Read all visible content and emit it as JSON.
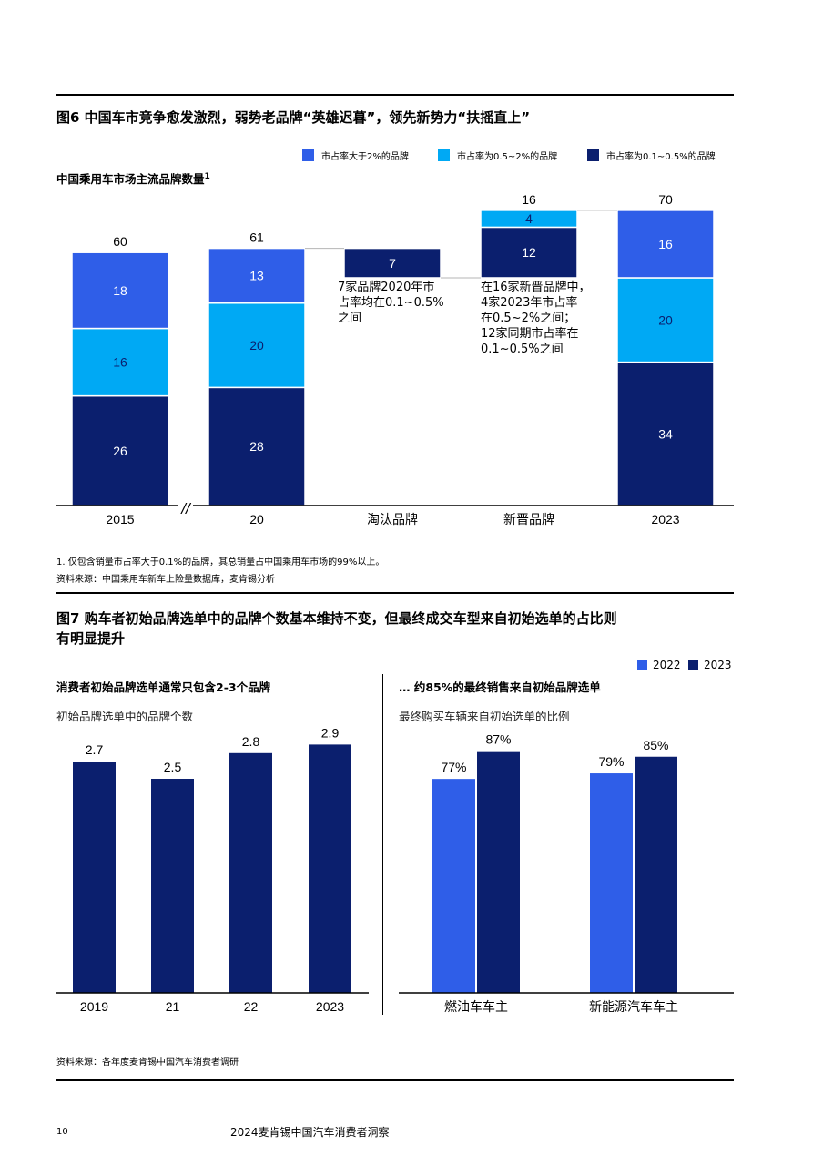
{
  "figure6": {
    "title": "图6 中国车市竞争愈发激烈，弱势老品牌“英雄迟暮”，领先新势力“扶摇直上”",
    "subtitle": "中国乘用车市场主流品牌数量",
    "subtitle_sup": "1",
    "legend": [
      {
        "label": "市占率大于2%的品牌",
        "color": "#2f5ee8"
      },
      {
        "label": "市占率为0.5~2%的品牌",
        "color": "#00a9f4"
      },
      {
        "label": "市占率为0.1~0.5%的品牌",
        "color": "#0b1f6e"
      }
    ],
    "annotation_left": [
      "7家品牌2020年市",
      "占率均在0.1~0.5%",
      "之间"
    ],
    "annotation_right": [
      "在16家新晋品牌中，",
      "4家2023年市占率",
      "在0.5~2%之间；",
      "12家同期市占率在",
      "0.1~0.5%之间"
    ],
    "footnote": "1.  仅包含销量市占率大于0.1%的品牌，其总销量占中国乘用车市场的99%以上。",
    "source": "资料来源：中国乘用车新车上险量数据库，麦肯锡分析",
    "axis_break": "//"
  },
  "figure7": {
    "title_line1": "图7 购车者初始品牌选单中的品牌个数基本维持不变，但最终成交车型来自初始选单的占比则",
    "title_line2": "有明显提升",
    "legend": [
      {
        "label": "2022",
        "color": "#2f5ee8"
      },
      {
        "label": "2023",
        "color": "#0b1f6e"
      }
    ],
    "left_title": "消费者初始品牌选单通常只包含2-3个品牌",
    "left_subtitle": "初始品牌选单中的品牌个数",
    "right_title": "… 约85%的最终销售来自初始品牌选单",
    "right_subtitle": "最终购买车辆来自初始选单的比例",
    "source": "资料来源：各年度麦肯锡中国汽车消费者调研"
  },
  "footer": {
    "page_number": "10",
    "report_title": "2024麦肯锡中国汽车消费者洞察"
  },
  "chart_data": [
    {
      "type": "bar",
      "stacked": true,
      "title": "中国乘用车市场主流品牌数量",
      "categories": [
        "2015",
        "20",
        "淘汰品牌",
        "新晋品牌",
        "2023"
      ],
      "series": [
        {
          "name": "市占率为0.1~0.5%的品牌",
          "color": "#0b1f6e",
          "values": [
            26,
            28,
            7,
            12,
            34
          ]
        },
        {
          "name": "市占率为0.5~2%的品牌",
          "color": "#00a9f4",
          "values": [
            16,
            20,
            0,
            4,
            20
          ]
        },
        {
          "name": "市占率大于2%的品牌",
          "color": "#2f5ee8",
          "values": [
            18,
            13,
            0,
            0,
            16
          ]
        }
      ],
      "totals": [
        "60",
        "61",
        "",
        "16",
        "70"
      ],
      "waterfall": {
        "eliminated_range": [
          54,
          61
        ],
        "new_range": [
          54,
          70
        ]
      },
      "ylim": [
        0,
        70
      ],
      "grid": false
    },
    {
      "type": "bar",
      "title": "初始品牌选单中的品牌个数",
      "categories": [
        "2019",
        "21",
        "22",
        "2023"
      ],
      "values": [
        2.7,
        2.5,
        2.8,
        2.9
      ],
      "value_labels": [
        "2.7",
        "2.5",
        "2.8",
        "2.9"
      ],
      "color": "#0b1f6e",
      "ylim": [
        0,
        3.2
      ],
      "grid": false
    },
    {
      "type": "bar",
      "title": "最终购买车辆来自初始选单的比例",
      "categories": [
        "燃油车车主",
        "新能源汽车车主"
      ],
      "series": [
        {
          "name": "2022",
          "color": "#2f5ee8",
          "values": [
            77,
            79
          ],
          "labels": [
            "77%",
            "79%"
          ]
        },
        {
          "name": "2023",
          "color": "#0b1f6e",
          "values": [
            87,
            85
          ],
          "labels": [
            "87%",
            "85%"
          ]
        }
      ],
      "ylim": [
        0,
        100
      ],
      "unit": "%",
      "grid": false
    }
  ]
}
